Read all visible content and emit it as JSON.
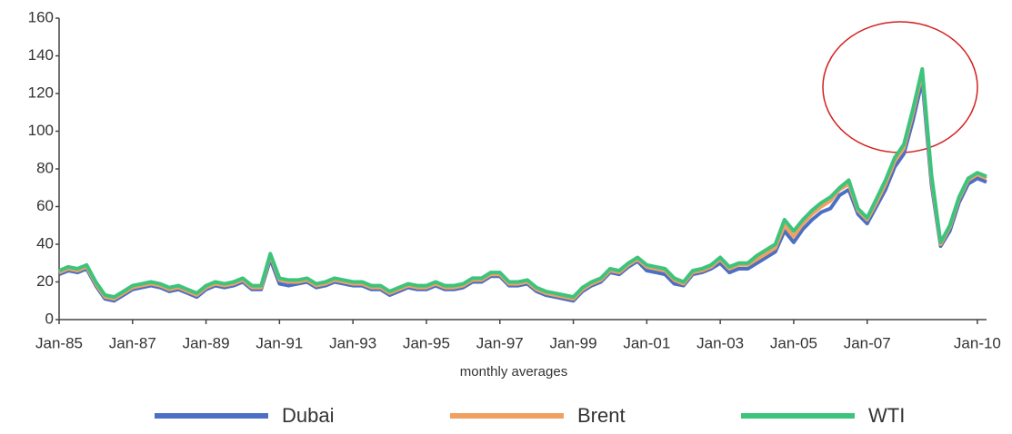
{
  "chart_data": {
    "type": "line",
    "xlabel": "monthly averages",
    "categories": [
      "Jan-85",
      null,
      null,
      null,
      null,
      null,
      null,
      null,
      "Jan-87",
      null,
      null,
      null,
      null,
      null,
      null,
      null,
      "Jan-89",
      null,
      null,
      null,
      null,
      null,
      null,
      null,
      "Jan-91",
      null,
      null,
      null,
      null,
      null,
      null,
      null,
      "Jan-93",
      null,
      null,
      null,
      null,
      null,
      null,
      null,
      "Jan-95",
      null,
      null,
      null,
      null,
      null,
      null,
      null,
      "Jan-97",
      null,
      null,
      null,
      null,
      null,
      null,
      null,
      "Jan-99",
      null,
      null,
      null,
      null,
      null,
      null,
      null,
      "Jan-01",
      null,
      null,
      null,
      null,
      null,
      null,
      null,
      "Jan-03",
      null,
      null,
      null,
      null,
      null,
      null,
      null,
      "Jan-05",
      null,
      null,
      null,
      null,
      null,
      null,
      null,
      "Jan-07",
      null,
      null,
      null,
      null,
      null,
      null,
      null,
      null,
      null,
      null,
      null,
      "Jan-10",
      null
    ],
    "series": [
      {
        "name": "Dubai",
        "color": "#4a6fc4",
        "values": [
          24,
          26,
          25,
          27,
          18,
          11,
          10,
          13,
          16,
          17,
          18,
          17,
          15,
          16,
          14,
          12,
          16,
          18,
          17,
          18,
          20,
          16,
          16,
          32,
          19,
          18,
          19,
          20,
          17,
          18,
          20,
          19,
          18,
          18,
          16,
          16,
          13,
          15,
          17,
          16,
          16,
          18,
          16,
          16,
          17,
          20,
          20,
          23,
          23,
          18,
          18,
          19,
          15,
          13,
          12,
          11,
          10,
          15,
          18,
          20,
          25,
          24,
          28,
          31,
          26,
          25,
          24,
          19,
          18,
          24,
          25,
          27,
          30,
          25,
          27,
          27,
          30,
          33,
          36,
          47,
          41,
          48,
          53,
          57,
          59,
          66,
          69,
          56,
          51,
          60,
          69,
          81,
          88,
          106,
          127,
          72,
          39,
          47,
          62,
          72,
          75,
          73
        ]
      },
      {
        "name": "Brent",
        "color": "#f0a060",
        "values": [
          25,
          27,
          26,
          28,
          19,
          12,
          11,
          14,
          17,
          18,
          19,
          18,
          16,
          17,
          15,
          13,
          17,
          19,
          18,
          19,
          21,
          17,
          17,
          34,
          21,
          20,
          20,
          21,
          18,
          19,
          21,
          20,
          19,
          19,
          17,
          17,
          14,
          16,
          18,
          17,
          17,
          19,
          17,
          17,
          18,
          21,
          21,
          24,
          24,
          19,
          19,
          20,
          16,
          14,
          13,
          12,
          11,
          16,
          19,
          21,
          26,
          25,
          29,
          32,
          28,
          27,
          26,
          21,
          19,
          25,
          26,
          28,
          32,
          27,
          29,
          29,
          32,
          35,
          38,
          50,
          44,
          51,
          56,
          60,
          63,
          69,
          72,
          58,
          53,
          62,
          72,
          84,
          91,
          110,
          131,
          75,
          40,
          49,
          64,
          74,
          77,
          75
        ]
      },
      {
        "name": "WTI",
        "color": "#3cc47c",
        "values": [
          26,
          28,
          27,
          29,
          20,
          13,
          12,
          15,
          18,
          19,
          20,
          19,
          17,
          18,
          16,
          14,
          18,
          20,
          19,
          20,
          22,
          18,
          18,
          35,
          22,
          21,
          21,
          22,
          19,
          20,
          22,
          21,
          20,
          20,
          18,
          18,
          15,
          17,
          19,
          18,
          18,
          20,
          18,
          18,
          19,
          22,
          22,
          25,
          25,
          20,
          20,
          21,
          17,
          15,
          14,
          13,
          12,
          17,
          20,
          22,
          27,
          26,
          30,
          33,
          29,
          28,
          27,
          22,
          20,
          26,
          27,
          29,
          33,
          28,
          30,
          30,
          34,
          37,
          40,
          53,
          47,
          53,
          58,
          62,
          65,
          70,
          74,
          59,
          54,
          64,
          74,
          86,
          93,
          112,
          133,
          77,
          41,
          50,
          65,
          75,
          78,
          76
        ]
      }
    ],
    "ylim": [
      0,
      160
    ],
    "yticks": [
      0,
      20,
      40,
      60,
      80,
      100,
      120,
      140,
      160
    ],
    "grid": false,
    "legend": "bottom"
  }
}
